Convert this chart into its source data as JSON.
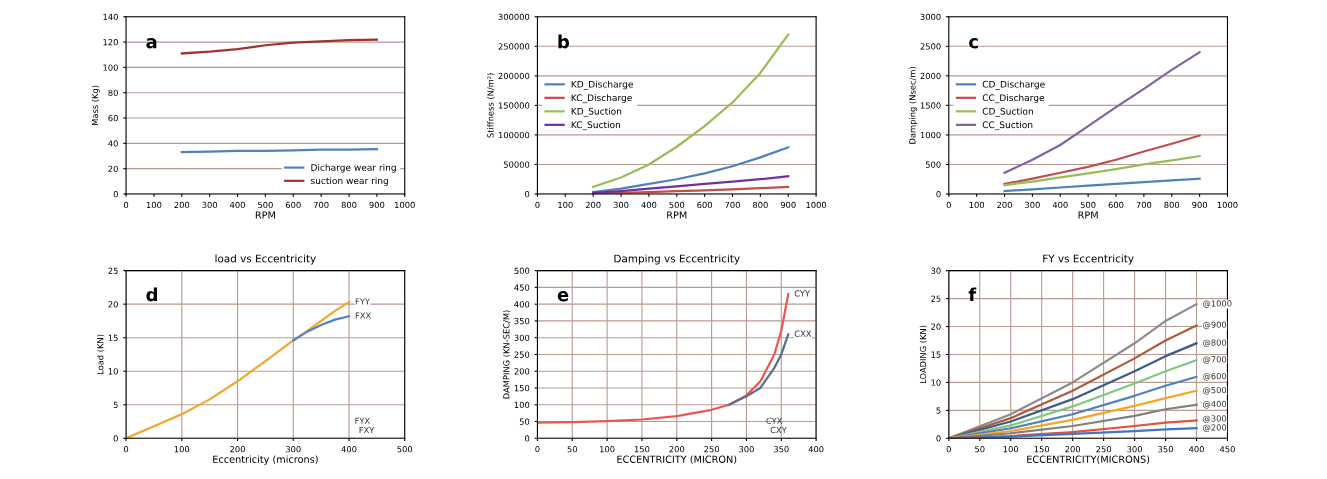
{
  "chart_data": [
    {
      "type": "line",
      "xlabel": "RPM",
      "ylabel": "Mass (Kg)",
      "annotations": [
        "a"
      ],
      "x": [
        200,
        300,
        400,
        500,
        600,
        700,
        800,
        900
      ],
      "xlim": [
        0,
        1000
      ],
      "xticks": [
        0,
        100,
        200,
        300,
        400,
        500,
        600,
        700,
        800,
        900,
        1000
      ],
      "ylim": [
        0,
        140
      ],
      "yticks": [
        0,
        20,
        40,
        60,
        80,
        100,
        120,
        140
      ],
      "grid": "y",
      "legend": "bottom right",
      "series": [
        {
          "name": "Dicharge wear ring",
          "color": "#4f81bd",
          "values": [
            33,
            33.5,
            34,
            34,
            34.5,
            35,
            35,
            35.5
          ]
        },
        {
          "name": "suction wear ring",
          "color": "#a0332f",
          "values": [
            111,
            112.5,
            114.5,
            117.5,
            119.5,
            120.5,
            121.5,
            122
          ]
        }
      ]
    },
    {
      "type": "line",
      "xlabel": "RPM",
      "ylabel": "Stiffness (N/m²)",
      "annotations": [
        "b"
      ],
      "x": [
        200,
        300,
        400,
        500,
        600,
        700,
        800,
        900
      ],
      "xlim": [
        0,
        1000
      ],
      "xticks": [
        0,
        100,
        200,
        300,
        400,
        500,
        600,
        700,
        800,
        900,
        1000
      ],
      "ylim": [
        0,
        300000
      ],
      "yticks": [
        0,
        50000,
        100000,
        150000,
        200000,
        250000,
        300000
      ],
      "grid": "y",
      "legend": "left",
      "series": [
        {
          "name": "KD_Discharge",
          "color": "#4f81bd",
          "values": [
            3000,
            9000,
            17000,
            25000,
            35000,
            47000,
            62000,
            79000
          ]
        },
        {
          "name": "KC_Discharge",
          "color": "#c0504d",
          "values": [
            1000,
            2000,
            3000,
            5000,
            6000,
            8000,
            10000,
            12000
          ]
        },
        {
          "name": "KD_Suction",
          "color": "#9bbb59",
          "values": [
            12000,
            28000,
            50000,
            80000,
            115000,
            155000,
            205000,
            270000
          ]
        },
        {
          "name": "KC_Suction",
          "color": "#7030a0",
          "values": [
            2000,
            5000,
            9000,
            13000,
            17000,
            21000,
            25000,
            30000
          ]
        }
      ]
    },
    {
      "type": "line",
      "xlabel": "RPM",
      "ylabel": "Damping (Nsec/m)",
      "annotations": [
        "c"
      ],
      "x": [
        200,
        300,
        400,
        500,
        600,
        700,
        800,
        900
      ],
      "xlim": [
        0,
        1000
      ],
      "xticks": [
        0,
        100,
        200,
        300,
        400,
        500,
        600,
        700,
        800,
        900,
        1000
      ],
      "ylim": [
        0,
        3000
      ],
      "yticks": [
        0,
        500,
        1000,
        1500,
        2000,
        2500,
        3000
      ],
      "grid": "y",
      "legend": "left",
      "series": [
        {
          "name": "CD_Discharge",
          "color": "#4f81bd",
          "values": [
            50,
            80,
            110,
            140,
            170,
            200,
            230,
            260
          ]
        },
        {
          "name": "CC_Discharge",
          "color": "#c0504d",
          "values": [
            170,
            260,
            360,
            460,
            580,
            720,
            850,
            990
          ]
        },
        {
          "name": "CD_Suction",
          "color": "#9bbb59",
          "values": [
            150,
            210,
            280,
            350,
            420,
            500,
            570,
            640
          ]
        },
        {
          "name": "CC_Suction",
          "color": "#8064a2",
          "values": [
            360,
            580,
            830,
            1150,
            1470,
            1780,
            2100,
            2400
          ]
        }
      ]
    },
    {
      "type": "line",
      "title": "load vs Eccentricity",
      "xlabel": "Eccentricity (microns)",
      "ylabel": "Load (KN)",
      "annotations": [
        "d",
        "FYX",
        "FXY"
      ],
      "x": [
        0,
        50,
        100,
        150,
        200,
        250,
        300,
        325,
        350,
        375,
        400
      ],
      "xlim": [
        0,
        500
      ],
      "xticks": [
        0,
        100,
        200,
        300,
        400,
        500
      ],
      "ylim": [
        0,
        25
      ],
      "yticks": [
        0,
        5,
        10,
        15,
        20,
        25
      ],
      "grid": true,
      "legend": false,
      "series": [
        {
          "name": "FYY",
          "color": "#f0a830",
          "values": [
            0,
            1.8,
            3.6,
            5.8,
            8.5,
            11.5,
            14.6,
            16,
            17.5,
            19,
            20.3
          ]
        },
        {
          "name": "FXX",
          "color": "#5b7fc7",
          "values": [
            null,
            null,
            null,
            null,
            null,
            null,
            14.6,
            15.9,
            16.9,
            17.7,
            18.2
          ]
        }
      ]
    },
    {
      "type": "line",
      "title": "Damping vs Eccentricity",
      "xlabel": "ECCENTRICITY (MICRON)",
      "ylabel": "DAMPING (KN-SEC/M)",
      "annotations": [
        "e",
        "CYX",
        "CXY"
      ],
      "x": [
        0,
        50,
        100,
        150,
        200,
        250,
        275,
        300,
        320,
        340,
        350,
        360
      ],
      "xlim": [
        0,
        400
      ],
      "xticks": [
        0,
        50,
        100,
        150,
        200,
        250,
        300,
        350,
        400
      ],
      "ylim": [
        0,
        500
      ],
      "yticks": [
        0,
        50,
        100,
        150,
        200,
        250,
        300,
        350,
        400,
        450,
        500
      ],
      "grid": true,
      "legend": false,
      "series": [
        {
          "name": "CYY",
          "color": "#e8584f",
          "values": [
            47,
            48,
            51,
            56,
            66,
            85,
            100,
            128,
            170,
            250,
            320,
            430
          ]
        },
        {
          "name": "CXX",
          "color": "#5a6f8f",
          "values": [
            null,
            null,
            null,
            null,
            null,
            null,
            100,
            125,
            150,
            210,
            250,
            310
          ]
        }
      ]
    },
    {
      "type": "line",
      "title": "FY vs Eccentricity",
      "xlabel": "ECCENTRICITY(MICRONS)",
      "ylabel": "LOADING (KN)",
      "annotations": [
        "f"
      ],
      "x": [
        0,
        100,
        200,
        300,
        350,
        400
      ],
      "xlim": [
        0,
        450
      ],
      "xticks": [
        0,
        50,
        100,
        150,
        200,
        250,
        300,
        350,
        400,
        450
      ],
      "ylim": [
        0,
        30
      ],
      "yticks": [
        0,
        5,
        10,
        15,
        20,
        25,
        30
      ],
      "grid": true,
      "legend": false,
      "series": [
        {
          "name": "@1000",
          "color": "#8c8c8c",
          "values": [
            0,
            4.3,
            10,
            17,
            21,
            24
          ]
        },
        {
          "name": "@900",
          "color": "#b05a3c",
          "values": [
            0,
            3.6,
            8.5,
            14.3,
            17.5,
            20.2
          ]
        },
        {
          "name": "@800",
          "color": "#3d5a8a",
          "values": [
            0,
            3,
            7,
            12,
            14.7,
            17
          ]
        },
        {
          "name": "@700",
          "color": "#7fc97f",
          "values": [
            0,
            2.3,
            5.7,
            9.8,
            12,
            14
          ]
        },
        {
          "name": "@600",
          "color": "#4f81bd",
          "values": [
            0,
            1.8,
            4.3,
            7.6,
            9.4,
            11
          ]
        },
        {
          "name": "@500",
          "color": "#f5a623",
          "values": [
            0,
            1.3,
            3.3,
            5.8,
            7.2,
            8.5
          ]
        },
        {
          "name": "@400",
          "color": "#808080",
          "values": [
            0,
            0.9,
            2.2,
            4,
            5.2,
            6
          ]
        },
        {
          "name": "@300",
          "color": "#e0533c",
          "values": [
            0,
            0.4,
            1.1,
            2.2,
            2.8,
            3.2
          ]
        },
        {
          "name": "@200",
          "color": "#4472c4",
          "values": [
            0,
            0.3,
            0.8,
            1.3,
            1.6,
            1.8
          ]
        }
      ]
    }
  ]
}
